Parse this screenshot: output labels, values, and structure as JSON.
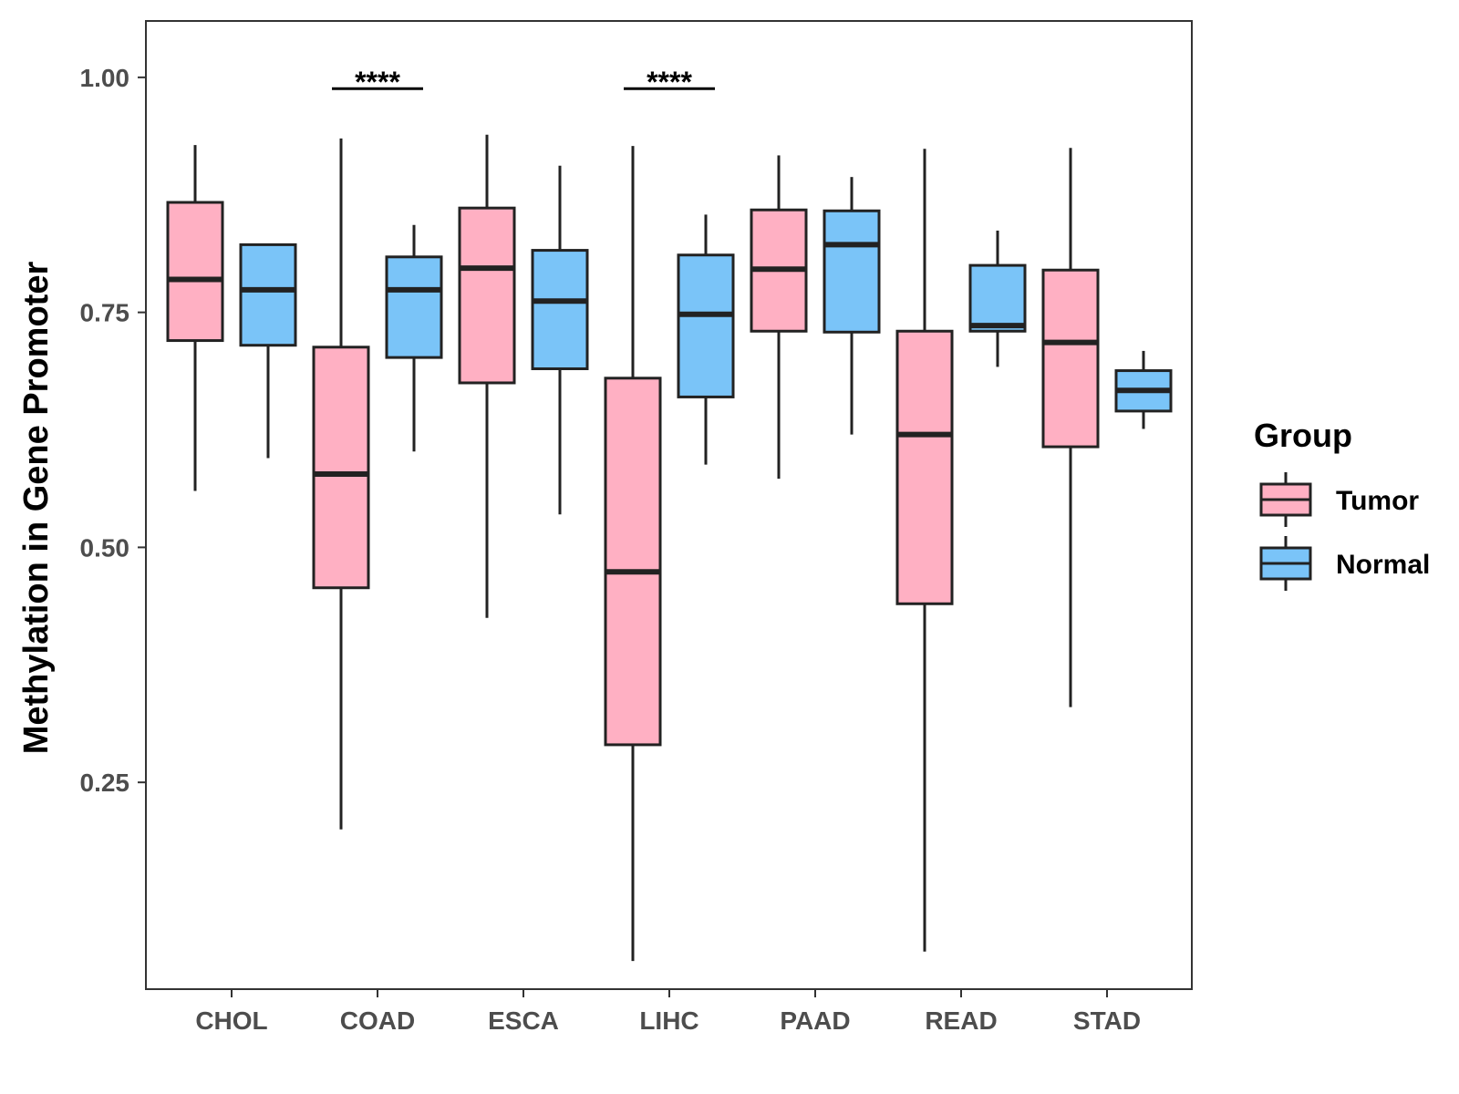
{
  "chart_data": {
    "type": "box",
    "title": "",
    "xlabel": "",
    "ylabel": "Methylation in Gene Promoter",
    "ylim": [
      0.03,
      1.06
    ],
    "yticks": [
      0.25,
      0.5,
      0.75,
      1.0
    ],
    "ytick_labels": [
      "0.25",
      "0.50",
      "0.75",
      "1.00"
    ],
    "categories": [
      "CHOL",
      "COAD",
      "ESCA",
      "LIHC",
      "PAAD",
      "READ",
      "STAD"
    ],
    "legend_title": "Group",
    "grid": false,
    "legend_position": "right",
    "series": [
      {
        "name": "Tumor",
        "color": "#FFB0C3",
        "boxes": [
          {
            "category": "CHOL",
            "whisker_low": 0.56,
            "q1": 0.72,
            "median": 0.785,
            "q3": 0.867,
            "whisker_high": 0.928
          },
          {
            "category": "COAD",
            "whisker_low": 0.2,
            "q1": 0.457,
            "median": 0.578,
            "q3": 0.713,
            "whisker_high": 0.935
          },
          {
            "category": "ESCA",
            "whisker_low": 0.425,
            "q1": 0.675,
            "median": 0.797,
            "q3": 0.861,
            "whisker_high": 0.939
          },
          {
            "category": "LIHC",
            "whisker_low": 0.06,
            "q1": 0.29,
            "median": 0.474,
            "q3": 0.68,
            "whisker_high": 0.927
          },
          {
            "category": "PAAD",
            "whisker_low": 0.573,
            "q1": 0.73,
            "median": 0.796,
            "q3": 0.859,
            "whisker_high": 0.917
          },
          {
            "category": "READ",
            "whisker_low": 0.07,
            "q1": 0.44,
            "median": 0.62,
            "q3": 0.73,
            "whisker_high": 0.924
          },
          {
            "category": "STAD",
            "whisker_low": 0.33,
            "q1": 0.607,
            "median": 0.718,
            "q3": 0.795,
            "whisker_high": 0.925
          }
        ]
      },
      {
        "name": "Normal",
        "color": "#7AC4F8",
        "boxes": [
          {
            "category": "CHOL",
            "whisker_low": 0.595,
            "q1": 0.715,
            "median": 0.774,
            "q3": 0.822,
            "whisker_high": 0.823
          },
          {
            "category": "COAD",
            "whisker_low": 0.602,
            "q1": 0.702,
            "median": 0.774,
            "q3": 0.809,
            "whisker_high": 0.843
          },
          {
            "category": "ESCA",
            "whisker_low": 0.535,
            "q1": 0.69,
            "median": 0.762,
            "q3": 0.816,
            "whisker_high": 0.906
          },
          {
            "category": "LIHC",
            "whisker_low": 0.588,
            "q1": 0.66,
            "median": 0.748,
            "q3": 0.811,
            "whisker_high": 0.854
          },
          {
            "category": "PAAD",
            "whisker_low": 0.62,
            "q1": 0.729,
            "median": 0.822,
            "q3": 0.858,
            "whisker_high": 0.894
          },
          {
            "category": "READ",
            "whisker_low": 0.692,
            "q1": 0.73,
            "median": 0.736,
            "q3": 0.8,
            "whisker_high": 0.837
          },
          {
            "category": "STAD",
            "whisker_low": 0.626,
            "q1": 0.645,
            "median": 0.667,
            "q3": 0.688,
            "whisker_high": 0.709
          }
        ]
      }
    ],
    "annotations": [
      {
        "category": "COAD",
        "text": "****",
        "y": 0.988
      },
      {
        "category": "LIHC",
        "text": "****",
        "y": 0.988
      }
    ]
  }
}
